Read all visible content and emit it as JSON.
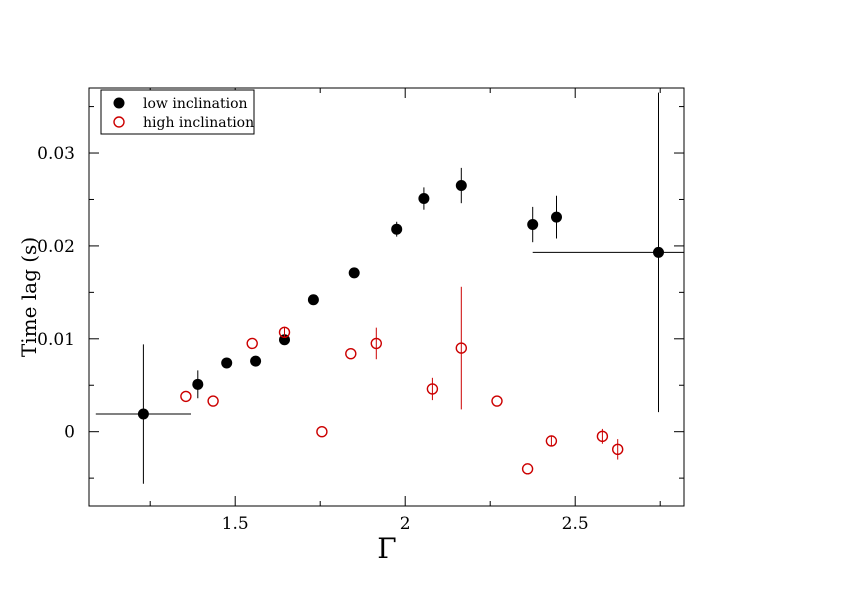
{
  "chart_data": {
    "type": "scatter",
    "title": "",
    "xlabel": "Γ",
    "ylabel": "Time lag (s)",
    "xlim": [
      1.07,
      2.82
    ],
    "ylim": [
      -0.008,
      0.037
    ],
    "xticks": [
      1.5,
      2,
      2.5
    ],
    "xtick_labels": [
      "1.5",
      "2",
      "2.5"
    ],
    "yticks": [
      0,
      0.01,
      0.02,
      0.03
    ],
    "ytick_labels": [
      "0",
      "0.01",
      "0.02",
      "0.03"
    ],
    "grid": false,
    "legend_position": "top-left",
    "series": [
      {
        "name": "low inclination",
        "color": "#000000",
        "marker": "filled-circle",
        "points": [
          {
            "x": 1.23,
            "y": 0.0019,
            "yerr": 0.0075,
            "xerr": 0.14
          },
          {
            "x": 1.39,
            "y": 0.0051,
            "yerr": 0.0015
          },
          {
            "x": 1.475,
            "y": 0.0074,
            "yerr": 0.0005
          },
          {
            "x": 1.56,
            "y": 0.0076,
            "yerr": 0.0005
          },
          {
            "x": 1.645,
            "y": 0.0099,
            "yerr": 0.0005
          },
          {
            "x": 1.73,
            "y": 0.0142,
            "yerr": 0.0005
          },
          {
            "x": 1.85,
            "y": 0.0171,
            "yerr": 0.0005
          },
          {
            "x": 1.975,
            "y": 0.0218,
            "yerr": 0.0008
          },
          {
            "x": 2.055,
            "y": 0.0251,
            "yerr": 0.0012
          },
          {
            "x": 2.165,
            "y": 0.0265,
            "yerr": 0.0019
          },
          {
            "x": 2.375,
            "y": 0.0223,
            "yerr": 0.0019
          },
          {
            "x": 2.445,
            "y": 0.0231,
            "yerr": 0.0023
          },
          {
            "x": 2.745,
            "y": 0.0193,
            "yerr": 0.0172,
            "xerr": 0.37
          }
        ]
      },
      {
        "name": "high inclination",
        "color": "#cc0000",
        "marker": "open-circle",
        "points": [
          {
            "x": 1.355,
            "y": 0.0038,
            "yerr": 0
          },
          {
            "x": 1.435,
            "y": 0.0033,
            "yerr": 0
          },
          {
            "x": 1.55,
            "y": 0.0095,
            "yerr": 0
          },
          {
            "x": 1.645,
            "y": 0.0107,
            "yerr": 0.0006
          },
          {
            "x": 1.755,
            "y": 0.0,
            "yerr": 0
          },
          {
            "x": 1.84,
            "y": 0.0084,
            "yerr": 0
          },
          {
            "x": 1.915,
            "y": 0.0095,
            "yerr": 0.0017
          },
          {
            "x": 2.08,
            "y": 0.0046,
            "yerr": 0.0012
          },
          {
            "x": 2.165,
            "y": 0.009,
            "yerr": 0.0066
          },
          {
            "x": 2.27,
            "y": 0.0033,
            "yerr": 0
          },
          {
            "x": 2.36,
            "y": -0.004,
            "yerr": 0
          },
          {
            "x": 2.43,
            "y": -0.001,
            "yerr": 0.0006
          },
          {
            "x": 2.58,
            "y": -0.0005,
            "yerr": 0.0008
          },
          {
            "x": 2.625,
            "y": -0.0019,
            "yerr": 0.0011
          }
        ]
      }
    ]
  }
}
